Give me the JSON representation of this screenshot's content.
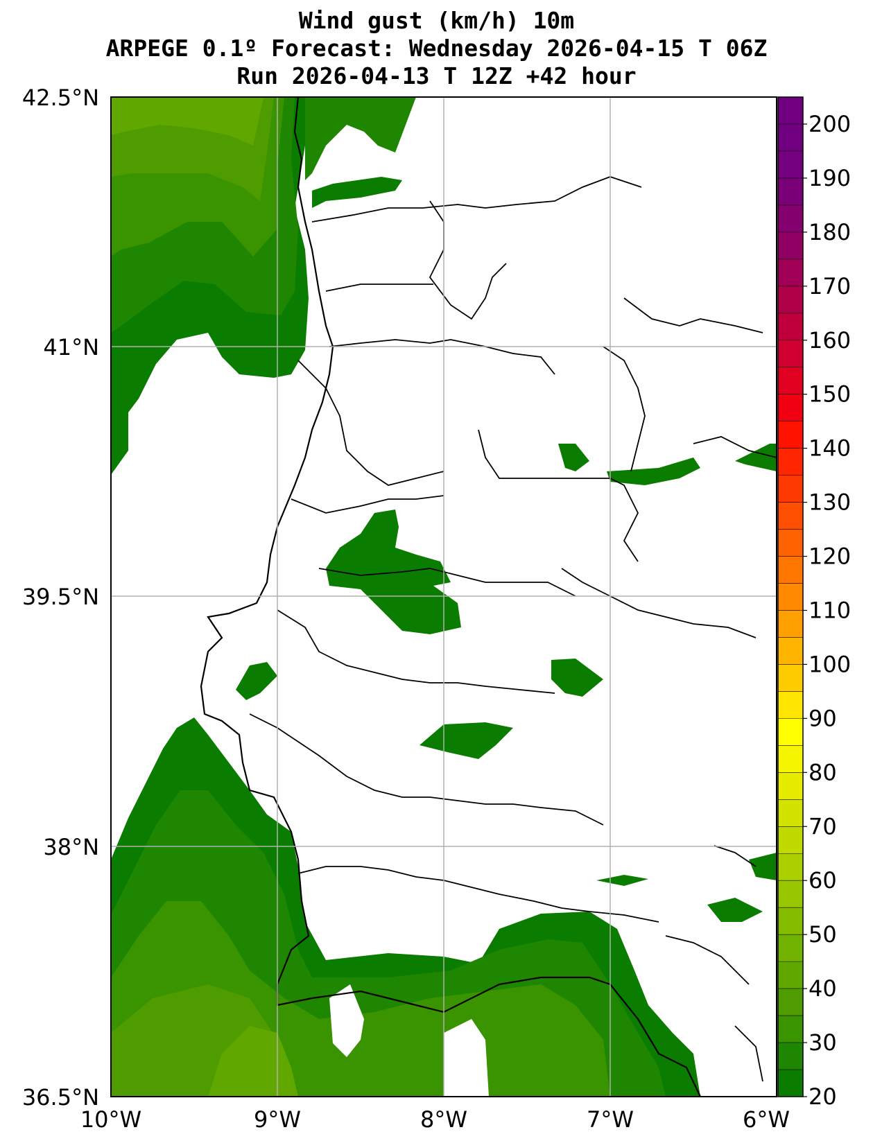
{
  "title": {
    "line1": "Wind gust (km/h) 10m",
    "line2": "ARPEGE 0.1º Forecast: Wednesday 2026-04-15 T 06Z",
    "line3": "Run 2026-04-13 T 12Z +42 hour"
  },
  "axes": {
    "lon_ticks": [
      "10°W",
      "9°W",
      "8°W",
      "7°W",
      "6°W"
    ],
    "lat_ticks": [
      "42.5°N",
      "41°N",
      "39.5°N",
      "38°N",
      "36.5°N"
    ],
    "lon_range": [
      -10,
      -6
    ],
    "lat_range": [
      36.5,
      42.5
    ],
    "grid": true
  },
  "colorbar": {
    "labels": [
      "20",
      "30",
      "40",
      "50",
      "60",
      "70",
      "80",
      "90",
      "100",
      "110",
      "120",
      "130",
      "140",
      "150",
      "160",
      "170",
      "180",
      "190",
      "200"
    ],
    "min": 20,
    "max": 205,
    "step": 5,
    "colors": [
      "#0a7d00",
      "#1e8600",
      "#3a9400",
      "#4f9c00",
      "#60a800",
      "#72b200",
      "#85bc00",
      "#98c600",
      "#abd000",
      "#c0da00",
      "#d3e300",
      "#e6ec00",
      "#f5f500",
      "#ffff00",
      "#ffe600",
      "#ffcc00",
      "#ffb400",
      "#ff9f00",
      "#ff8a00",
      "#ff7600",
      "#ff6200",
      "#ff4e00",
      "#ff3a00",
      "#ff2600",
      "#ff1200",
      "#f00010",
      "#e00020",
      "#d00030",
      "#c0003c",
      "#b00048",
      "#a00055",
      "#900062",
      "#85006f",
      "#7a0078",
      "#75007f",
      "#70007f",
      "#70007f"
    ]
  },
  "colors": {
    "land": "#ffffff",
    "coast": "#000000",
    "grid": "#b0b0b0"
  }
}
